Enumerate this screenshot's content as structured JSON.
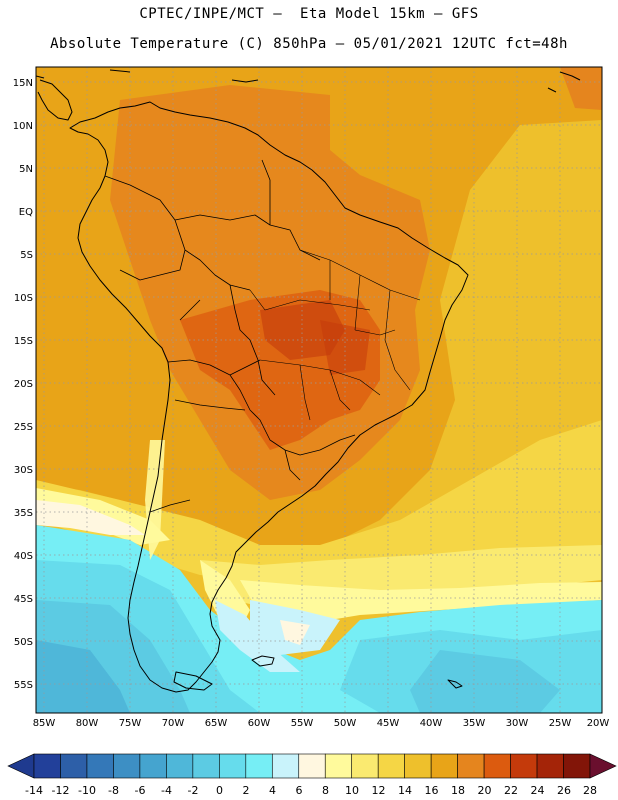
{
  "header": {
    "line1": "CPTEC/INPE/MCT –  Eta Model 15km – GFS",
    "line2": "Absolute Temperature (C) 850hPa – 05/01/2021 12UTC fct=48h"
  },
  "map": {
    "lat_labels": [
      "15N",
      "10N",
      "5N",
      "EQ",
      "5S",
      "10S",
      "15S",
      "20S",
      "25S",
      "30S",
      "35S",
      "40S",
      "45S",
      "50S",
      "55S"
    ],
    "lon_labels": [
      "85W",
      "80W",
      "75W",
      "70W",
      "65W",
      "60W",
      "55W",
      "50W",
      "45W",
      "40W",
      "35W",
      "30W",
      "25W",
      "20W"
    ],
    "lat_range": [
      -57.5,
      15.5
    ],
    "lon_range": [
      -86,
      -20
    ]
  },
  "colorbar": {
    "labels": [
      "-14",
      "-12",
      "-10",
      "-8",
      "-6",
      "-4",
      "-2",
      "0",
      "2",
      "4",
      "6",
      "8",
      "10",
      "12",
      "14",
      "16",
      "18",
      "20",
      "22",
      "24",
      "26",
      "28"
    ],
    "colors": [
      "#22409a",
      "#2d5fa8",
      "#3478b8",
      "#3d8fc4",
      "#45a4cf",
      "#4fb7d9",
      "#5ccbe3",
      "#66dcec",
      "#76eef5",
      "#c9f3fb",
      "#fff7e0",
      "#fffa9c",
      "#faea70",
      "#f5d645",
      "#eec02c",
      "#e8a418",
      "#e5851e",
      "#dc5b0f",
      "#c43a0b",
      "#a42408",
      "#821508"
    ]
  }
}
